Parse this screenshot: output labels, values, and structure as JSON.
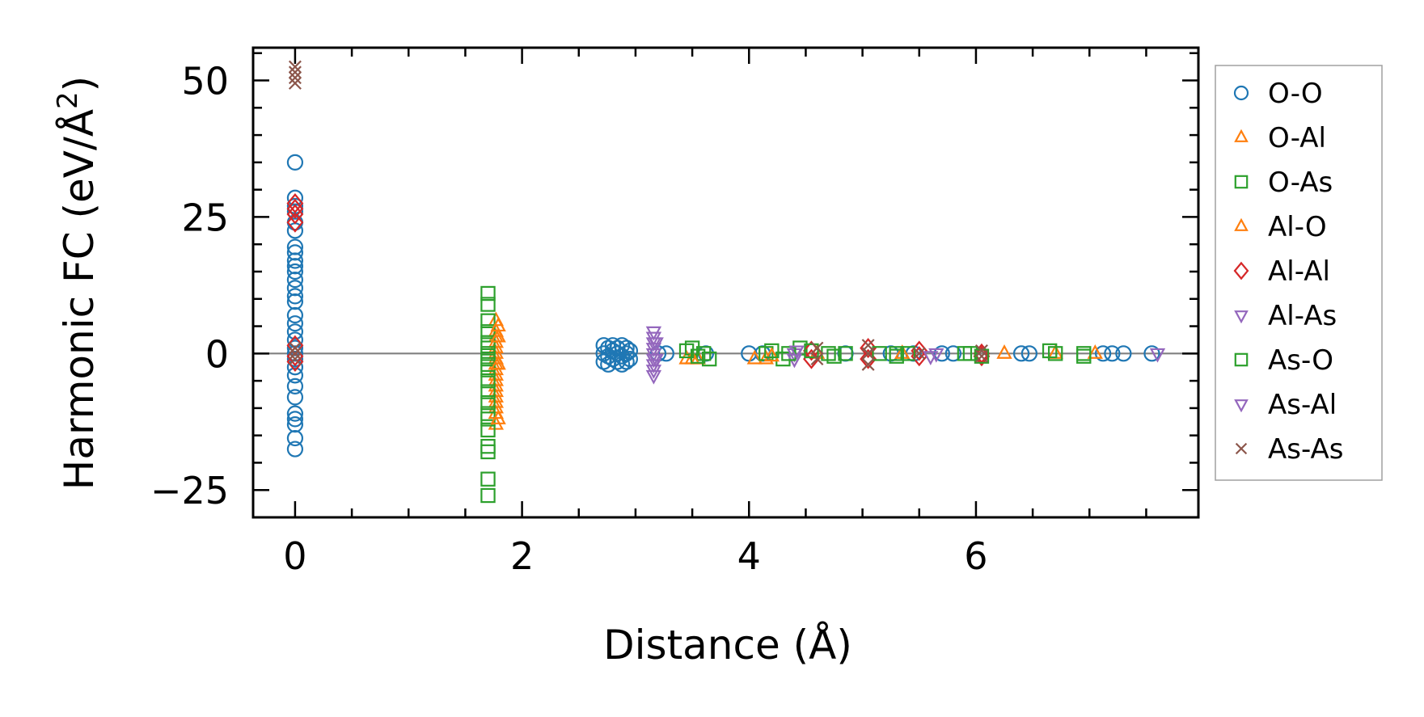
{
  "chart_data": {
    "type": "scatter",
    "title": "",
    "xlabel": "Distance (Å)",
    "ylabel": "Harmonic FC (eV/Å",
    "ylabel_sup": "2",
    "ylabel_end": ")",
    "xlim": [
      -0.37,
      7.96
    ],
    "ylim": [
      -30,
      56
    ],
    "xticks": [
      {
        "value": 0,
        "label": "0"
      },
      {
        "value": 2,
        "label": "2"
      },
      {
        "value": 4,
        "label": "4"
      },
      {
        "value": 6,
        "label": "6"
      }
    ],
    "yticks": [
      {
        "value": -25,
        "label": "−25"
      },
      {
        "value": 0,
        "label": "0"
      },
      {
        "value": 25,
        "label": "25"
      },
      {
        "value": 50,
        "label": "50"
      }
    ],
    "x_minor_step": 0.5,
    "y_minor_step": 5,
    "zero_line": {
      "value": 0,
      "color": "#808080"
    },
    "legend_position": "outside-right",
    "series": [
      {
        "name": "O-O",
        "marker": "circle",
        "color": "#1f77b4",
        "points": [
          [
            0,
            35
          ],
          [
            0,
            28.5
          ],
          [
            0,
            27
          ],
          [
            0,
            26
          ],
          [
            0,
            24
          ],
          [
            0,
            22.5
          ],
          [
            0,
            19.5
          ],
          [
            0,
            18.5
          ],
          [
            0,
            17
          ],
          [
            0,
            16
          ],
          [
            0,
            15
          ],
          [
            0,
            13.5
          ],
          [
            0,
            12
          ],
          [
            0,
            10.5
          ],
          [
            0,
            9.5
          ],
          [
            0,
            7
          ],
          [
            0,
            5.5
          ],
          [
            0,
            4
          ],
          [
            0,
            2.5
          ],
          [
            0,
            1
          ],
          [
            0,
            0
          ],
          [
            0,
            -1
          ],
          [
            0,
            -2.5
          ],
          [
            0,
            -4
          ],
          [
            0,
            -6
          ],
          [
            0,
            -8
          ],
          [
            0,
            -11
          ],
          [
            0,
            -12
          ],
          [
            0,
            -13
          ],
          [
            0,
            -15.5
          ],
          [
            0,
            -17.5
          ],
          [
            2.72,
            1.5
          ],
          [
            2.72,
            0
          ],
          [
            2.72,
            -1.5
          ],
          [
            2.76,
            1
          ],
          [
            2.76,
            -0.5
          ],
          [
            2.76,
            -2
          ],
          [
            2.8,
            1.5
          ],
          [
            2.8,
            0.5
          ],
          [
            2.8,
            -1
          ],
          [
            2.84,
            1
          ],
          [
            2.84,
            0
          ],
          [
            2.84,
            -1.5
          ],
          [
            2.88,
            1.5
          ],
          [
            2.88,
            -0.5
          ],
          [
            2.88,
            -2
          ],
          [
            2.92,
            1
          ],
          [
            2.92,
            0
          ],
          [
            2.92,
            -1.5
          ],
          [
            2.95,
            0.5
          ],
          [
            2.95,
            -1
          ],
          [
            3.2,
            0
          ],
          [
            3.27,
            0
          ],
          [
            3.62,
            0
          ],
          [
            4.0,
            0
          ],
          [
            4.12,
            0
          ],
          [
            4.85,
            0
          ],
          [
            5.25,
            0
          ],
          [
            5.45,
            0
          ],
          [
            5.7,
            0
          ],
          [
            5.8,
            0
          ],
          [
            6.4,
            0
          ],
          [
            6.47,
            0
          ],
          [
            7.12,
            0
          ],
          [
            7.2,
            0
          ],
          [
            7.3,
            0
          ],
          [
            7.55,
            0
          ]
        ]
      },
      {
        "name": "O-Al",
        "marker": "triangle-up",
        "color": "#ff7f0e",
        "points": [
          [
            1.77,
            6
          ],
          [
            1.77,
            4
          ],
          [
            1.77,
            3
          ],
          [
            1.77,
            2
          ],
          [
            1.77,
            1
          ],
          [
            1.77,
            0
          ],
          [
            1.77,
            -1
          ],
          [
            1.77,
            -2
          ],
          [
            1.77,
            -3
          ],
          [
            1.77,
            -4
          ],
          [
            1.77,
            -5
          ],
          [
            1.77,
            -6
          ],
          [
            1.77,
            -7
          ],
          [
            1.77,
            -8
          ],
          [
            1.77,
            -9
          ],
          [
            1.77,
            -10
          ],
          [
            1.77,
            -11
          ],
          [
            1.77,
            -13
          ],
          [
            3.45,
            -1
          ],
          [
            3.55,
            -1
          ],
          [
            4.05,
            -1
          ],
          [
            4.15,
            -1
          ],
          [
            4.6,
            0
          ],
          [
            5.35,
            0
          ],
          [
            6.25,
            0
          ],
          [
            6.7,
            0
          ],
          [
            7.05,
            0
          ]
        ]
      },
      {
        "name": "O-As",
        "marker": "square",
        "color": "#2ca02c",
        "points": [
          [
            1.7,
            11
          ],
          [
            1.7,
            9
          ],
          [
            1.7,
            6
          ],
          [
            1.7,
            4
          ],
          [
            1.7,
            2
          ],
          [
            1.7,
            1
          ],
          [
            1.7,
            0
          ],
          [
            1.7,
            -1
          ],
          [
            1.7,
            -2
          ],
          [
            1.7,
            -3
          ],
          [
            1.7,
            -5
          ],
          [
            1.7,
            -7
          ],
          [
            1.7,
            -9
          ],
          [
            1.7,
            -11
          ],
          [
            1.7,
            -12
          ],
          [
            1.7,
            -14
          ],
          [
            1.7,
            -17
          ],
          [
            1.7,
            -18
          ],
          [
            1.7,
            -23
          ],
          [
            1.7,
            -26
          ],
          [
            3.5,
            1
          ],
          [
            3.6,
            0
          ],
          [
            3.65,
            -1
          ],
          [
            4.15,
            0
          ],
          [
            4.3,
            -1
          ],
          [
            4.45,
            1
          ],
          [
            4.7,
            0
          ],
          [
            5.3,
            0
          ],
          [
            5.9,
            0
          ],
          [
            6.7,
            0
          ],
          [
            6.95,
            0
          ]
        ]
      },
      {
        "name": "Al-O",
        "marker": "triangle-up",
        "color": "#ff7f0e",
        "points": [
          [
            1.79,
            5
          ],
          [
            1.79,
            3
          ],
          [
            1.79,
            -2
          ],
          [
            1.79,
            -12
          ],
          [
            3.5,
            -1
          ],
          [
            4.2,
            -0.5
          ]
        ]
      },
      {
        "name": "Al-Al",
        "marker": "diamond",
        "color": "#d62728",
        "points": [
          [
            0,
            27.5
          ],
          [
            0,
            26.5
          ],
          [
            0,
            25.5
          ],
          [
            0,
            24
          ],
          [
            0,
            1.5
          ],
          [
            0,
            -0.5
          ],
          [
            0,
            -1.5
          ],
          [
            4.55,
            0.5
          ],
          [
            4.55,
            -1
          ],
          [
            5.05,
            1
          ],
          [
            5.05,
            -1
          ],
          [
            5.5,
            0.5
          ],
          [
            5.5,
            -0.5
          ],
          [
            6.05,
            0
          ],
          [
            6.05,
            -0.5
          ]
        ]
      },
      {
        "name": "Al-As",
        "marker": "triangle-down",
        "color": "#9467bd",
        "points": [
          [
            3.16,
            4
          ],
          [
            3.16,
            3
          ],
          [
            3.16,
            2
          ],
          [
            3.16,
            1
          ],
          [
            3.16,
            0
          ],
          [
            3.16,
            -1
          ],
          [
            3.16,
            -2
          ],
          [
            3.16,
            -3
          ],
          [
            3.16,
            -4
          ],
          [
            4.4,
            0
          ],
          [
            4.4,
            -1
          ],
          [
            5.65,
            0
          ],
          [
            7.6,
            0
          ]
        ]
      },
      {
        "name": "As-O",
        "marker": "square",
        "color": "#2ca02c",
        "points": [
          [
            3.45,
            0.5
          ],
          [
            3.55,
            -0.5
          ],
          [
            4.2,
            0.5
          ],
          [
            4.35,
            0
          ],
          [
            4.55,
            0.5
          ],
          [
            4.75,
            -0.5
          ],
          [
            4.85,
            0
          ],
          [
            5.15,
            0
          ],
          [
            5.3,
            -0.5
          ],
          [
            5.4,
            0
          ],
          [
            5.95,
            0
          ],
          [
            6.05,
            -0.5
          ],
          [
            6.65,
            0.5
          ],
          [
            6.95,
            -0.5
          ]
        ]
      },
      {
        "name": "As-Al",
        "marker": "triangle-down",
        "color": "#9467bd",
        "points": [
          [
            3.18,
            2
          ],
          [
            3.18,
            -1
          ],
          [
            4.42,
            0.5
          ],
          [
            5.6,
            -0.5
          ]
        ]
      },
      {
        "name": "As-As",
        "marker": "x",
        "color": "#8c564b",
        "points": [
          [
            0,
            52.5
          ],
          [
            0,
            51.5
          ],
          [
            0,
            50.5
          ],
          [
            0,
            49.5
          ],
          [
            0,
            1
          ],
          [
            0,
            0
          ],
          [
            0,
            -1
          ],
          [
            4.6,
            1
          ],
          [
            4.6,
            -1
          ],
          [
            5.05,
            1.5
          ],
          [
            5.05,
            0
          ],
          [
            5.05,
            -2
          ],
          [
            5.5,
            0
          ],
          [
            6.05,
            0.5
          ],
          [
            6.05,
            -0.5
          ]
        ]
      }
    ]
  }
}
